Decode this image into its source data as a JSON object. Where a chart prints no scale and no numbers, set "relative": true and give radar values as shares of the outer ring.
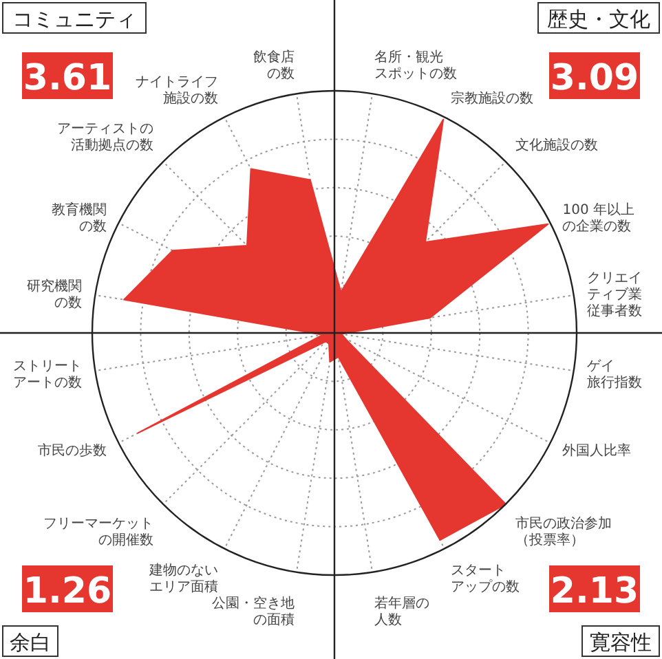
{
  "chart_data": {
    "type": "radar",
    "relative": true,
    "categories": [
      "名所・観光スポットの数",
      "宗教施設の数",
      "文化施設の数",
      "100 年以上の企業の数",
      "クリエイティブ業従事者数",
      "ゲイ旅行指数",
      "外国人比率",
      "市民の政治参加（投票率）",
      "スタートアップの数",
      "若年層の人数",
      "公園・空き地の面積",
      "建物のないエリア面積",
      "フリーマーケットの開催数",
      "市民の歩数",
      "ストリートアートの数",
      "研究機関の数",
      "教育機関の数",
      "アーティストの活動拠点の数",
      "ナイトライフ施設の数",
      "飲食店の数"
    ],
    "series": [
      {
        "color": "#e5362f",
        "values": [
          0.17,
          0.99,
          0.53,
          0.99,
          0.4,
          0.03,
          0.05,
          1.0,
          0.96,
          0.1,
          0.12,
          0.05,
          0.05,
          0.91,
          0.05,
          0.88,
          0.75,
          0.51,
          0.76,
          0.64
        ]
      }
    ],
    "annotations": [
      "歴史・文化",
      "3.09",
      "寛容性",
      "2.13",
      "余白",
      "1.26",
      "コミュニティ",
      "3.61"
    ]
  }
}
